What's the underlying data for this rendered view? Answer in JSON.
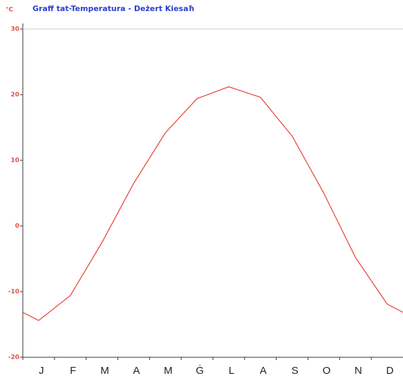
{
  "chart_data": {
    "type": "line",
    "title": "Graff tat-Temperatura - Deżert Kiesaħ",
    "y_label": "°C",
    "categories": [
      "J",
      "F",
      "M",
      "A",
      "M",
      "Ġ",
      "L",
      "A",
      "S",
      "O",
      "N",
      "D"
    ],
    "series": [
      {
        "name": "Temperatura",
        "color": "#e8483f",
        "values": [
          -14.4,
          -10.6,
          -2.5,
          6.5,
          14.2,
          19.4,
          21.2,
          19.6,
          13.7,
          5.0,
          -4.8,
          -11.9
        ]
      }
    ],
    "ylim": [
      -20,
      30
    ],
    "yticks": [
      -20,
      -10,
      0,
      10,
      20,
      30
    ]
  }
}
